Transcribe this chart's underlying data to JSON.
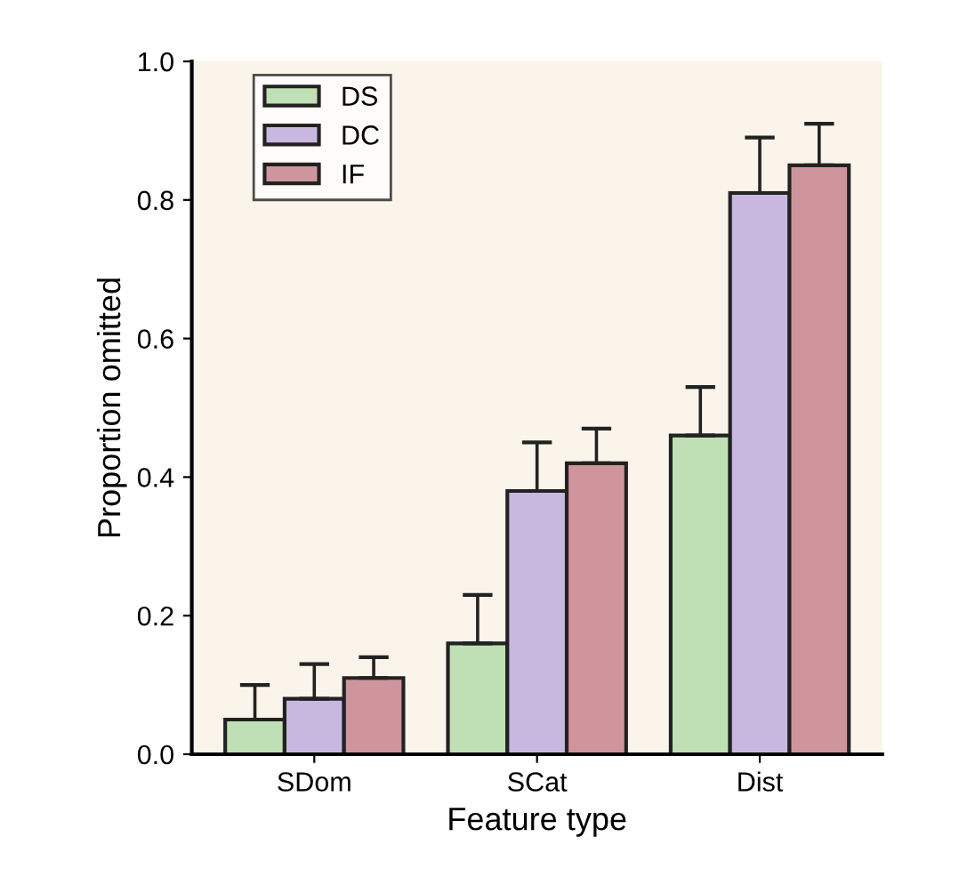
{
  "chart_data": {
    "type": "bar",
    "xlabel": "Feature type",
    "ylabel": "Proportion omitted",
    "categories": [
      "SDom",
      "SCat",
      "Dist"
    ],
    "series": [
      {
        "name": "DS",
        "color": "#bfe0b4",
        "values": [
          0.05,
          0.16,
          0.46
        ],
        "errors": [
          [
            0.05,
            0.1
          ],
          [
            0.16,
            0.23
          ],
          [
            0.46,
            0.53
          ]
        ]
      },
      {
        "name": "DC",
        "color": "#c8b8e0",
        "values": [
          0.08,
          0.38,
          0.81
        ],
        "errors": [
          [
            0.08,
            0.13
          ],
          [
            0.38,
            0.45
          ],
          [
            0.81,
            0.89
          ]
        ]
      },
      {
        "name": "IF",
        "color": "#cf959c",
        "values": [
          0.11,
          0.42,
          0.85
        ],
        "errors": [
          [
            0.11,
            0.14
          ],
          [
            0.42,
            0.47
          ],
          [
            0.85,
            0.91
          ]
        ]
      }
    ],
    "ylim": [
      0,
      1.0
    ],
    "yticks": [
      {
        "value": 0,
        "label": "0.0"
      },
      {
        "value": 0.2,
        "label": "0.2"
      },
      {
        "value": 0.4,
        "label": "0.4"
      },
      {
        "value": 0.6,
        "label": "0.6"
      },
      {
        "value": 0.8,
        "label": "0.8"
      },
      {
        "value": 1.0,
        "label": "1.0"
      }
    ],
    "legend": "top left",
    "grid": false
  }
}
